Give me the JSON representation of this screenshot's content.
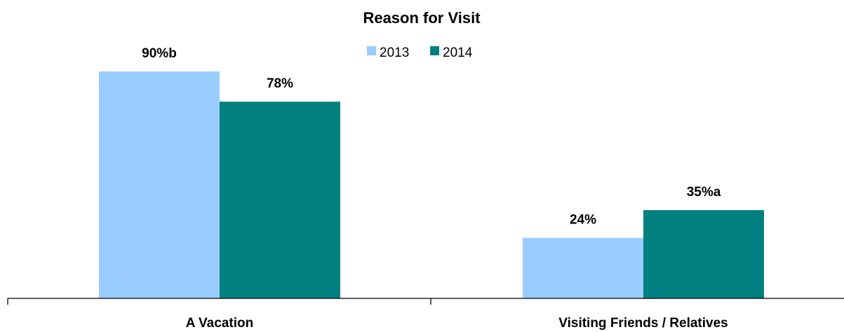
{
  "chart_data": {
    "type": "bar",
    "title": "Reason for Visit",
    "categories": [
      "A Vacation",
      "Visiting Friends / Relatives"
    ],
    "series": [
      {
        "name": "2013",
        "color": "#99ccff",
        "values": [
          90,
          24
        ],
        "labels": [
          "90%b",
          "24%"
        ]
      },
      {
        "name": "2014",
        "color": "#008080",
        "values": [
          78,
          35
        ],
        "labels": [
          "78%",
          "35%a"
        ]
      }
    ],
    "ylim": [
      0,
      100
    ],
    "grid": false,
    "legend_position": "top-center",
    "xlabel": "",
    "ylabel": ""
  }
}
